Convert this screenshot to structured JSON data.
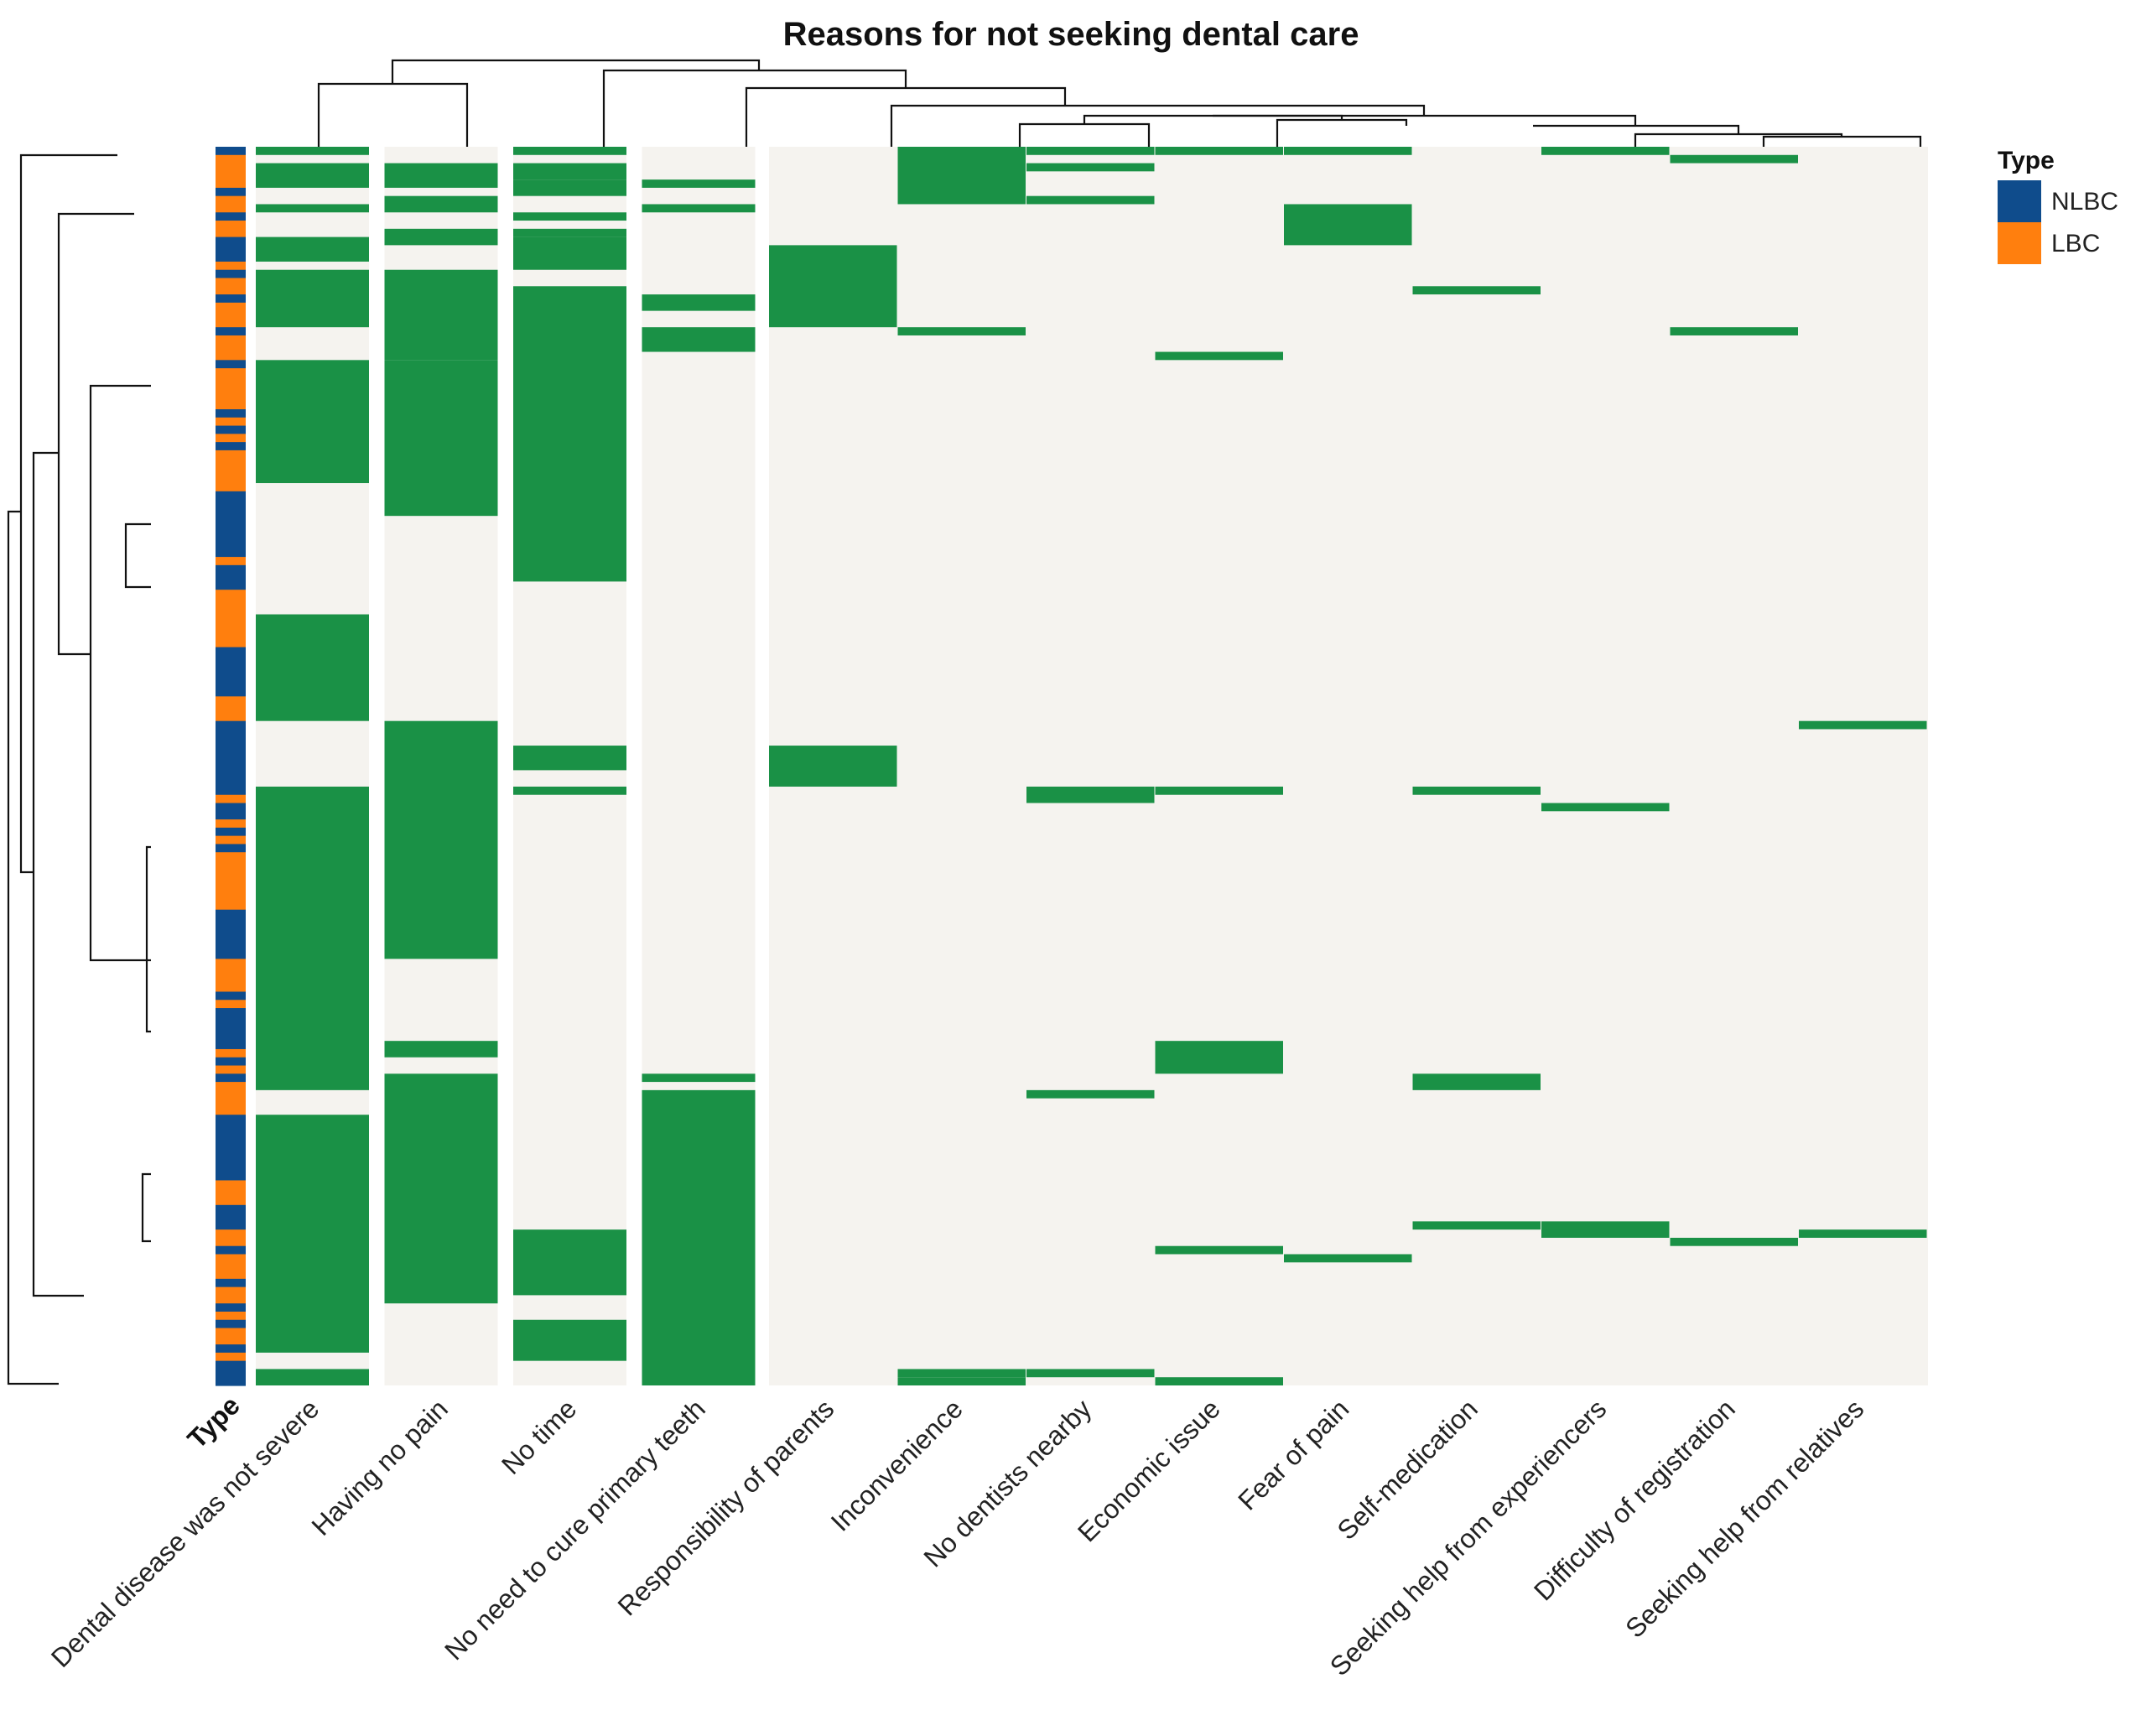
{
  "chart_data": {
    "type": "heatmap",
    "title": "Reasons for not seeking dental care",
    "row_annotation_label": "Type",
    "legend": {
      "title": "Type",
      "items": [
        {
          "label": "NLBC",
          "color": "#0f4c8c"
        },
        {
          "label": "LBC",
          "color": "#ff7f0e"
        }
      ]
    },
    "colors": {
      "present": "#1a9146",
      "absent": "#f5f3ef",
      "dendrogram": "#111111"
    },
    "n_rows": 151,
    "columns": [
      "Dental disease was not severe",
      "Having no pain",
      "No time",
      "No need to cure primary teeth",
      "Responsibility of parents",
      "Inconvenience",
      "No dentists nearby",
      "Economic issue",
      "Fear of pain",
      "Self-medication",
      "Seeking help from experiencers",
      "Difficulty of registration",
      "Seeking help from relatives"
    ],
    "row_types": [
      {
        "type": "NLBC",
        "from": 0,
        "to": 1
      },
      {
        "type": "LBC",
        "from": 1,
        "to": 5
      },
      {
        "type": "NLBC",
        "from": 5,
        "to": 6
      },
      {
        "type": "LBC",
        "from": 6,
        "to": 8
      },
      {
        "type": "NLBC",
        "from": 8,
        "to": 9
      },
      {
        "type": "LBC",
        "from": 9,
        "to": 11
      },
      {
        "type": "NLBC",
        "from": 11,
        "to": 14
      },
      {
        "type": "LBC",
        "from": 14,
        "to": 15
      },
      {
        "type": "NLBC",
        "from": 15,
        "to": 16
      },
      {
        "type": "LBC",
        "from": 16,
        "to": 18
      },
      {
        "type": "NLBC",
        "from": 18,
        "to": 19
      },
      {
        "type": "LBC",
        "from": 19,
        "to": 22
      },
      {
        "type": "NLBC",
        "from": 22,
        "to": 23
      },
      {
        "type": "LBC",
        "from": 23,
        "to": 26
      },
      {
        "type": "NLBC",
        "from": 26,
        "to": 27
      },
      {
        "type": "LBC",
        "from": 27,
        "to": 32
      },
      {
        "type": "NLBC",
        "from": 32,
        "to": 33
      },
      {
        "type": "LBC",
        "from": 33,
        "to": 34
      },
      {
        "type": "NLBC",
        "from": 34,
        "to": 35
      },
      {
        "type": "LBC",
        "from": 35,
        "to": 36
      },
      {
        "type": "NLBC",
        "from": 36,
        "to": 37
      },
      {
        "type": "LBC",
        "from": 37,
        "to": 42
      },
      {
        "type": "NLBC",
        "from": 42,
        "to": 50
      },
      {
        "type": "LBC",
        "from": 50,
        "to": 51
      },
      {
        "type": "NLBC",
        "from": 51,
        "to": 54
      },
      {
        "type": "LBC",
        "from": 54,
        "to": 61
      },
      {
        "type": "NLBC",
        "from": 61,
        "to": 67
      },
      {
        "type": "LBC",
        "from": 67,
        "to": 70
      },
      {
        "type": "NLBC",
        "from": 70,
        "to": 79
      },
      {
        "type": "LBC",
        "from": 79,
        "to": 80
      },
      {
        "type": "NLBC",
        "from": 80,
        "to": 82
      },
      {
        "type": "LBC",
        "from": 82,
        "to": 83
      },
      {
        "type": "NLBC",
        "from": 83,
        "to": 84
      },
      {
        "type": "LBC",
        "from": 84,
        "to": 85
      },
      {
        "type": "NLBC",
        "from": 85,
        "to": 86
      },
      {
        "type": "LBC",
        "from": 86,
        "to": 93
      },
      {
        "type": "NLBC",
        "from": 93,
        "to": 99
      },
      {
        "type": "LBC",
        "from": 99,
        "to": 103
      },
      {
        "type": "NLBC",
        "from": 103,
        "to": 104
      },
      {
        "type": "LBC",
        "from": 104,
        "to": 105
      },
      {
        "type": "NLBC",
        "from": 105,
        "to": 110
      },
      {
        "type": "LBC",
        "from": 110,
        "to": 111
      },
      {
        "type": "NLBC",
        "from": 111,
        "to": 112
      },
      {
        "type": "LBC",
        "from": 112,
        "to": 113
      },
      {
        "type": "NLBC",
        "from": 113,
        "to": 114
      },
      {
        "type": "LBC",
        "from": 114,
        "to": 118
      },
      {
        "type": "NLBC",
        "from": 118,
        "to": 126
      },
      {
        "type": "LBC",
        "from": 126,
        "to": 129
      },
      {
        "type": "NLBC",
        "from": 129,
        "to": 132
      },
      {
        "type": "LBC",
        "from": 132,
        "to": 134
      },
      {
        "type": "NLBC",
        "from": 134,
        "to": 135
      },
      {
        "type": "LBC",
        "from": 135,
        "to": 138
      },
      {
        "type": "NLBC",
        "from": 138,
        "to": 139
      },
      {
        "type": "LBC",
        "from": 139,
        "to": 141
      },
      {
        "type": "NLBC",
        "from": 141,
        "to": 142
      },
      {
        "type": "LBC",
        "from": 142,
        "to": 143
      },
      {
        "type": "NLBC",
        "from": 143,
        "to": 144
      },
      {
        "type": "LBC",
        "from": 144,
        "to": 146
      },
      {
        "type": "NLBC",
        "from": 146,
        "to": 147
      },
      {
        "type": "LBC",
        "from": 147,
        "to": 148
      },
      {
        "type": "NLBC",
        "from": 148,
        "to": 151
      }
    ],
    "present_ranges": [
      [
        [
          0,
          1
        ],
        [
          2,
          5
        ],
        [
          7,
          8
        ],
        [
          11,
          14
        ],
        [
          15,
          22
        ],
        [
          26,
          41
        ],
        [
          57,
          70
        ],
        [
          78,
          115
        ],
        [
          118,
          147
        ],
        [
          149,
          151
        ]
      ],
      [
        [
          2,
          5
        ],
        [
          6,
          8
        ],
        [
          10,
          12
        ],
        [
          15,
          26
        ],
        [
          26,
          45
        ],
        [
          70,
          99
        ],
        [
          109,
          111
        ],
        [
          113,
          141
        ]
      ],
      [
        [
          0,
          1
        ],
        [
          2,
          4
        ],
        [
          4,
          6
        ],
        [
          8,
          9
        ],
        [
          10,
          11
        ],
        [
          11,
          15
        ],
        [
          17,
          53
        ],
        [
          73,
          76
        ],
        [
          78,
          79
        ],
        [
          132,
          140
        ],
        [
          143,
          148
        ]
      ],
      [
        [
          4,
          5
        ],
        [
          7,
          8
        ],
        [
          18,
          20
        ],
        [
          22,
          25
        ],
        [
          113,
          114
        ],
        [
          115,
          151
        ]
      ],
      [
        [
          12,
          22
        ],
        [
          73,
          78
        ]
      ],
      [
        [
          0,
          7
        ],
        [
          22,
          23
        ],
        [
          149,
          150
        ],
        [
          150,
          151
        ]
      ],
      [
        [
          0,
          1
        ],
        [
          2,
          3
        ],
        [
          6,
          7
        ],
        [
          78,
          80
        ],
        [
          115,
          116
        ],
        [
          149,
          150
        ]
      ],
      [
        [
          0,
          1
        ],
        [
          25,
          26
        ],
        [
          78,
          79
        ],
        [
          109,
          113
        ],
        [
          134,
          135
        ],
        [
          150,
          151
        ]
      ],
      [
        [
          0,
          1
        ],
        [
          7,
          12
        ],
        [
          135,
          136
        ]
      ],
      [
        [
          17,
          18
        ],
        [
          78,
          79
        ],
        [
          113,
          115
        ],
        [
          131,
          132
        ]
      ],
      [
        [
          0,
          1
        ],
        [
          80,
          81
        ],
        [
          131,
          133
        ]
      ],
      [
        [
          1,
          2
        ],
        [
          22,
          23
        ],
        [
          133,
          134
        ]
      ],
      [
        [
          70,
          71
        ],
        [
          132,
          133
        ]
      ]
    ]
  }
}
